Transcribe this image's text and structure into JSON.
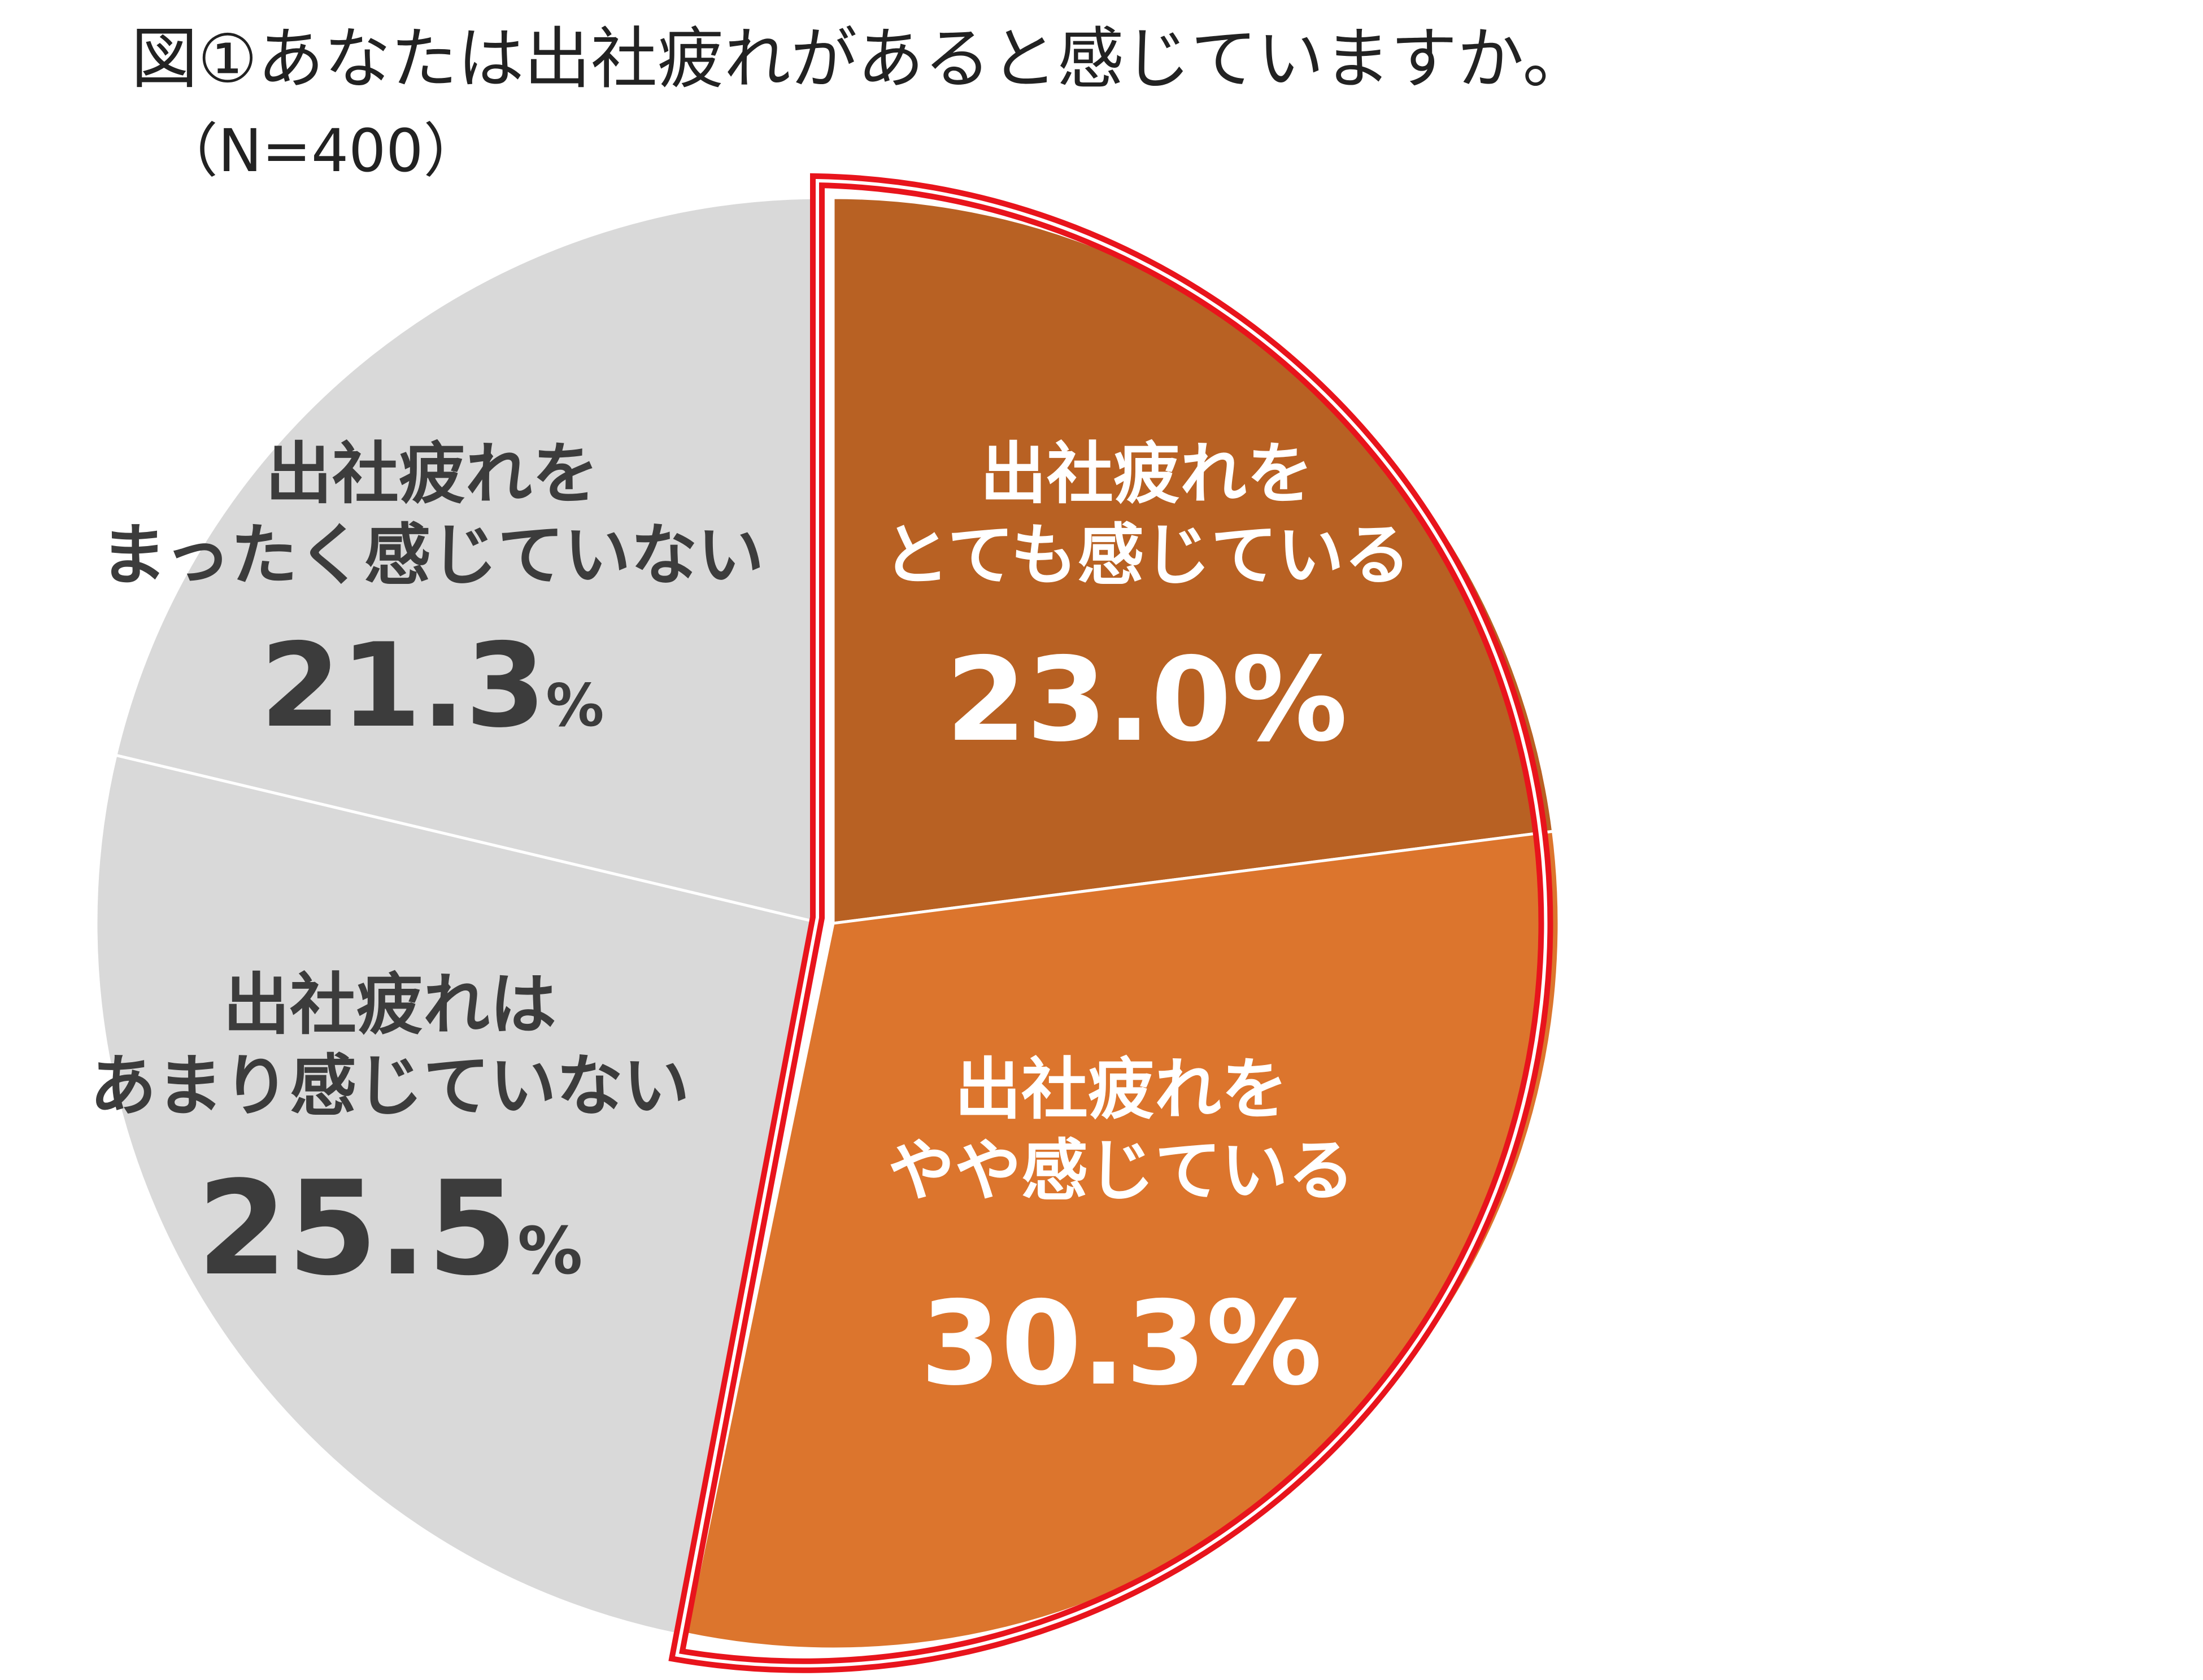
{
  "title": "図①あなたは出社疲れがあると感じていますか。",
  "subtitle": "（N=400）",
  "chart_data": {
    "type": "pie",
    "title": "図①あなたは出社疲れがあると感じていますか。",
    "subtitle": "（N=400）",
    "start_angle_deg": 0,
    "direction": "clockwise",
    "slices": [
      {
        "label_lines": [
          "出社疲れを",
          "とても感じている"
        ],
        "value": 23.0,
        "value_text": "23.0%",
        "color": "#b86123",
        "text_color": "#ffffff",
        "highlighted": true
      },
      {
        "label_lines": [
          "出社疲れを",
          "やや感じている"
        ],
        "value": 30.3,
        "value_text": "30.3%",
        "color": "#dc752d",
        "text_color": "#ffffff",
        "highlighted": true
      },
      {
        "label_lines": [
          "出社疲れは",
          "あまり感じていない"
        ],
        "value": 25.5,
        "value_text": "25.5",
        "percent_sign": "%",
        "color": "#d9d9d9",
        "text_color": "#3c3c3c",
        "highlighted": false
      },
      {
        "label_lines": [
          "出社疲れを",
          "まったく感じていない"
        ],
        "value": 21.3,
        "value_text": "21.3",
        "percent_sign": "%",
        "color": "#d9d9d9",
        "text_color": "#3c3c3c",
        "highlighted": false
      }
    ],
    "highlight_border_color": "#e8141c",
    "legend": "none"
  }
}
